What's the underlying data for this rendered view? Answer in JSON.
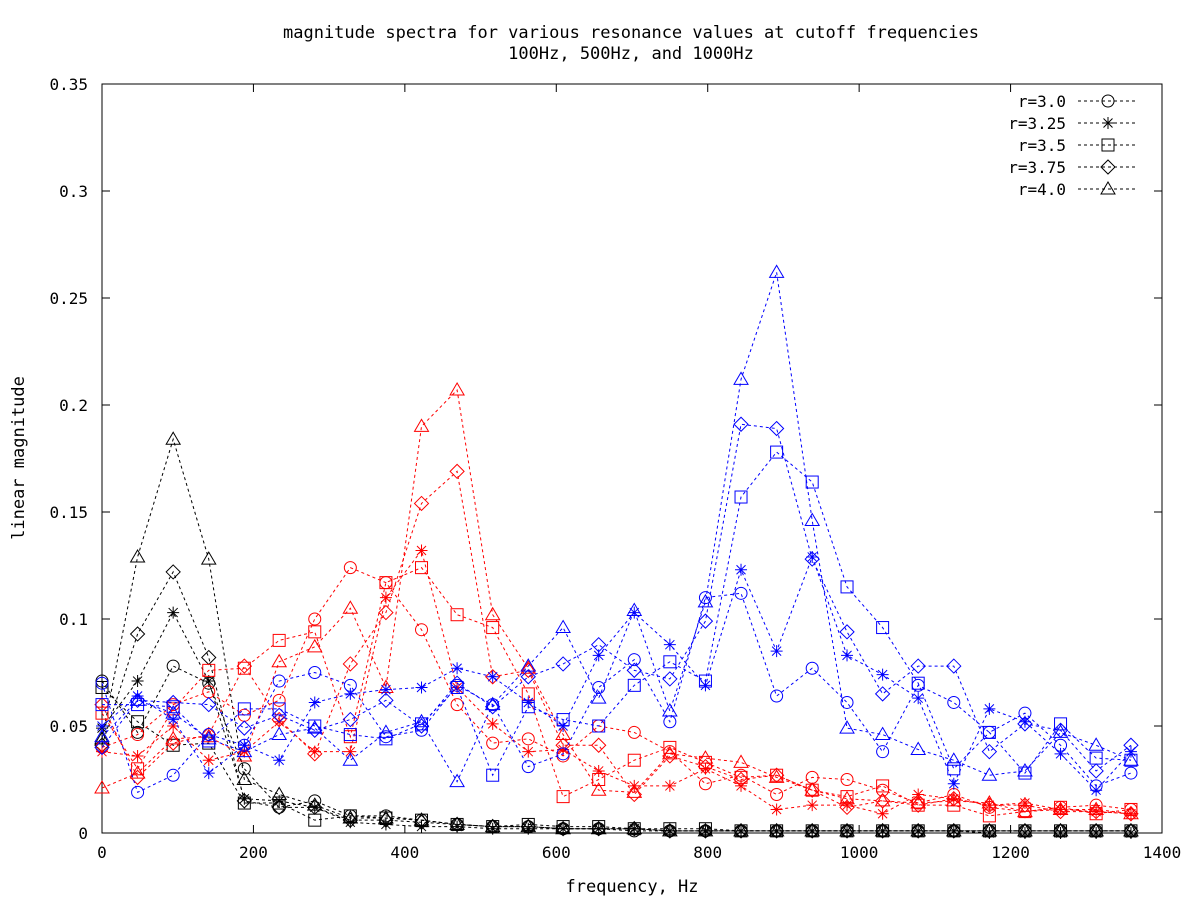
{
  "chart_data": {
    "type": "line",
    "title": "magnitude spectra for various resonance values at cutoff frequencies",
    "subtitle": "100Hz, 500Hz, and 1000Hz",
    "xlabel": "frequency, Hz",
    "ylabel": "linear magnitude",
    "xlim": [
      0,
      1400
    ],
    "ylim": [
      0,
      0.35
    ],
    "xticks": [
      0,
      200,
      400,
      600,
      800,
      1000,
      1200,
      1400
    ],
    "yticks": [
      0,
      0.05,
      0.1,
      0.15,
      0.2,
      0.25,
      0.3,
      0.35
    ],
    "xtick_labels": [
      "0",
      "200",
      "400",
      "600",
      "800",
      "1000",
      "1200",
      "1400"
    ],
    "ytick_labels": [
      "0",
      "0.05",
      "0.1",
      "0.15",
      "0.2",
      "0.25",
      "0.3",
      "0.35"
    ],
    "grid": false,
    "legend_position": "top-right",
    "line_style": "dotted",
    "legend": [
      {
        "label": "r=3.0",
        "marker": "circle"
      },
      {
        "label": "r=3.25",
        "marker": "star"
      },
      {
        "label": "r=3.5",
        "marker": "square"
      },
      {
        "label": "r=3.75",
        "marker": "diamond"
      },
      {
        "label": "r=4.0",
        "marker": "triangle"
      }
    ],
    "x": [
      0,
      47,
      94,
      141,
      188,
      234,
      281,
      328,
      375,
      422,
      469,
      516,
      563,
      609,
      656,
      703,
      750,
      797,
      844,
      891,
      938,
      984,
      1031,
      1078,
      1125,
      1172,
      1219,
      1266,
      1313,
      1359
    ],
    "series": [
      {
        "cutoff": "100Hz",
        "color": "#000000",
        "r": "3.0",
        "marker": "circle",
        "values": [
          0.071,
          0.047,
          0.078,
          0.07,
          0.03,
          0.012,
          0.015,
          0.008,
          0.008,
          0.006,
          0.004,
          0.003,
          0.003,
          0.002,
          0.002,
          0.001,
          0.001,
          0.001,
          0.001,
          0.001,
          0.001,
          0.001,
          0.001,
          0.001,
          0.001,
          0.001,
          0.001,
          0.001,
          0.001,
          0.001
        ]
      },
      {
        "cutoff": "100Hz",
        "color": "#000000",
        "r": "3.25",
        "marker": "star",
        "values": [
          0.049,
          0.071,
          0.103,
          0.071,
          0.016,
          0.015,
          0.012,
          0.005,
          0.004,
          0.003,
          0.003,
          0.002,
          0.002,
          0.002,
          0.002,
          0.002,
          0.001,
          0.001,
          0.001,
          0.001,
          0.001,
          0.001,
          0.001,
          0.001,
          0.001,
          0.0,
          0.0,
          0.0,
          0.0,
          0.0
        ]
      },
      {
        "cutoff": "100Hz",
        "color": "#000000",
        "r": "3.5",
        "marker": "square",
        "values": [
          0.068,
          0.052,
          0.041,
          0.042,
          0.014,
          0.014,
          0.006,
          0.008,
          0.007,
          0.006,
          0.004,
          0.003,
          0.004,
          0.003,
          0.003,
          0.002,
          0.002,
          0.002,
          0.001,
          0.001,
          0.001,
          0.001,
          0.001,
          0.001,
          0.001,
          0.001,
          0.001,
          0.001,
          0.001,
          0.001
        ]
      },
      {
        "cutoff": "100Hz",
        "color": "#000000",
        "r": "3.75",
        "marker": "diamond",
        "values": [
          0.041,
          0.093,
          0.122,
          0.082,
          0.015,
          0.012,
          0.012,
          0.006,
          0.006,
          0.005,
          0.004,
          0.003,
          0.003,
          0.002,
          0.002,
          0.002,
          0.001,
          0.001,
          0.001,
          0.001,
          0.001,
          0.001,
          0.001,
          0.001,
          0.001,
          0.001,
          0.001,
          0.001,
          0.001,
          0.001
        ]
      },
      {
        "cutoff": "100Hz",
        "color": "#000000",
        "r": "4.0",
        "marker": "triangle",
        "values": [
          0.044,
          0.129,
          0.184,
          0.128,
          0.025,
          0.018,
          0.013,
          0.007,
          0.007,
          0.006,
          0.004,
          0.003,
          0.003,
          0.002,
          0.002,
          0.002,
          0.001,
          0.001,
          0.001,
          0.001,
          0.001,
          0.001,
          0.001,
          0.001,
          0.001,
          0.001,
          0.001,
          0.001,
          0.001,
          0.001
        ]
      },
      {
        "cutoff": "500Hz",
        "color": "#ff0000",
        "r": "3.0",
        "marker": "circle",
        "values": [
          0.04,
          0.046,
          0.06,
          0.066,
          0.055,
          0.062,
          0.1,
          0.124,
          0.117,
          0.095,
          0.06,
          0.042,
          0.044,
          0.036,
          0.05,
          0.047,
          0.038,
          0.023,
          0.027,
          0.018,
          0.026,
          0.025,
          0.02,
          0.014,
          0.018,
          0.012,
          0.01,
          0.012,
          0.013,
          0.011
        ]
      },
      {
        "cutoff": "500Hz",
        "color": "#ff0000",
        "r": "3.25",
        "marker": "star",
        "values": [
          0.038,
          0.036,
          0.05,
          0.034,
          0.038,
          0.052,
          0.038,
          0.038,
          0.11,
          0.132,
          0.068,
          0.051,
          0.038,
          0.039,
          0.029,
          0.022,
          0.022,
          0.03,
          0.022,
          0.011,
          0.013,
          0.013,
          0.009,
          0.018,
          0.016,
          0.013,
          0.014,
          0.011,
          0.01,
          0.009
        ]
      },
      {
        "cutoff": "500Hz",
        "color": "#ff0000",
        "r": "3.5",
        "marker": "square",
        "values": [
          0.056,
          0.03,
          0.058,
          0.076,
          0.077,
          0.09,
          0.094,
          0.045,
          0.117,
          0.124,
          0.102,
          0.096,
          0.065,
          0.017,
          0.025,
          0.034,
          0.04,
          0.033,
          0.026,
          0.027,
          0.02,
          0.017,
          0.022,
          0.013,
          0.013,
          0.008,
          0.01,
          0.012,
          0.009,
          0.011
        ]
      },
      {
        "cutoff": "500Hz",
        "color": "#ff0000",
        "r": "3.75",
        "marker": "diamond",
        "values": [
          0.06,
          0.026,
          0.042,
          0.046,
          0.078,
          0.053,
          0.037,
          0.079,
          0.103,
          0.154,
          0.169,
          0.073,
          0.076,
          0.041,
          0.041,
          0.018,
          0.036,
          0.031,
          0.025,
          0.027,
          0.02,
          0.012,
          0.015,
          0.013,
          0.016,
          0.013,
          0.013,
          0.01,
          0.01,
          0.009
        ]
      },
      {
        "cutoff": "500Hz",
        "color": "#ff0000",
        "r": "4.0",
        "marker": "triangle",
        "values": [
          0.021,
          0.028,
          0.044,
          0.045,
          0.036,
          0.08,
          0.087,
          0.105,
          0.068,
          0.19,
          0.207,
          0.102,
          0.077,
          0.046,
          0.02,
          0.019,
          0.037,
          0.035,
          0.033,
          0.026,
          0.02,
          0.016,
          0.015,
          0.014,
          0.015,
          0.014,
          0.01,
          0.011,
          0.011,
          0.009
        ]
      },
      {
        "cutoff": "1000Hz",
        "color": "#0000ff",
        "r": "3.0",
        "marker": "circle",
        "values": [
          0.07,
          0.019,
          0.027,
          0.046,
          0.041,
          0.071,
          0.075,
          0.069,
          0.045,
          0.048,
          0.069,
          0.06,
          0.031,
          0.037,
          0.068,
          0.081,
          0.052,
          0.11,
          0.112,
          0.064,
          0.077,
          0.061,
          0.038,
          0.069,
          0.061,
          0.047,
          0.056,
          0.041,
          0.022,
          0.028
        ]
      },
      {
        "cutoff": "1000Hz",
        "color": "#0000ff",
        "r": "3.25",
        "marker": "star",
        "values": [
          0.05,
          0.064,
          0.053,
          0.028,
          0.041,
          0.034,
          0.061,
          0.065,
          0.067,
          0.068,
          0.077,
          0.073,
          0.061,
          0.05,
          0.083,
          0.103,
          0.088,
          0.069,
          0.123,
          0.085,
          0.129,
          0.083,
          0.074,
          0.063,
          0.023,
          0.058,
          0.052,
          0.037,
          0.02,
          0.038
        ]
      },
      {
        "cutoff": "1000Hz",
        "color": "#0000ff",
        "r": "3.5",
        "marker": "square",
        "values": [
          0.06,
          0.06,
          0.059,
          0.043,
          0.058,
          0.058,
          0.05,
          0.046,
          0.044,
          0.051,
          0.068,
          0.027,
          0.059,
          0.053,
          0.05,
          0.069,
          0.08,
          0.071,
          0.157,
          0.178,
          0.164,
          0.115,
          0.096,
          0.07,
          0.03,
          0.047,
          0.028,
          0.051,
          0.035,
          0.034
        ]
      },
      {
        "cutoff": "1000Hz",
        "color": "#0000ff",
        "r": "3.75",
        "marker": "diamond",
        "values": [
          0.04,
          0.062,
          0.061,
          0.06,
          0.049,
          0.055,
          0.048,
          0.053,
          0.062,
          0.05,
          0.07,
          0.059,
          0.073,
          0.079,
          0.088,
          0.076,
          0.072,
          0.099,
          0.191,
          0.189,
          0.128,
          0.094,
          0.065,
          0.078,
          0.078,
          0.038,
          0.051,
          0.048,
          0.029,
          0.041
        ]
      },
      {
        "cutoff": "1000Hz",
        "color": "#0000ff",
        "r": "4.0",
        "marker": "triangle",
        "values": [
          0.045,
          0.062,
          0.056,
          0.044,
          0.038,
          0.046,
          0.049,
          0.034,
          0.047,
          0.052,
          0.024,
          0.06,
          0.078,
          0.096,
          0.063,
          0.104,
          0.057,
          0.108,
          0.212,
          0.262,
          0.146,
          0.049,
          0.046,
          0.039,
          0.034,
          0.027,
          0.029,
          0.047,
          0.041,
          0.034
        ]
      }
    ]
  }
}
